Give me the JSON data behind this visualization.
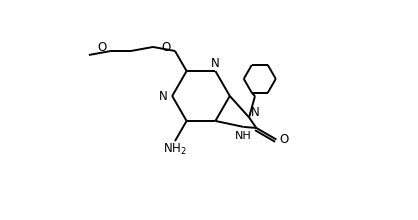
{
  "bg": "#ffffff",
  "lc": "#000000",
  "lw": 1.4,
  "fs": 8.5,
  "xlim": [
    0,
    10
  ],
  "ylim": [
    0,
    5.5
  ],
  "figsize": [
    4.18,
    2.2
  ],
  "dpi": 100
}
